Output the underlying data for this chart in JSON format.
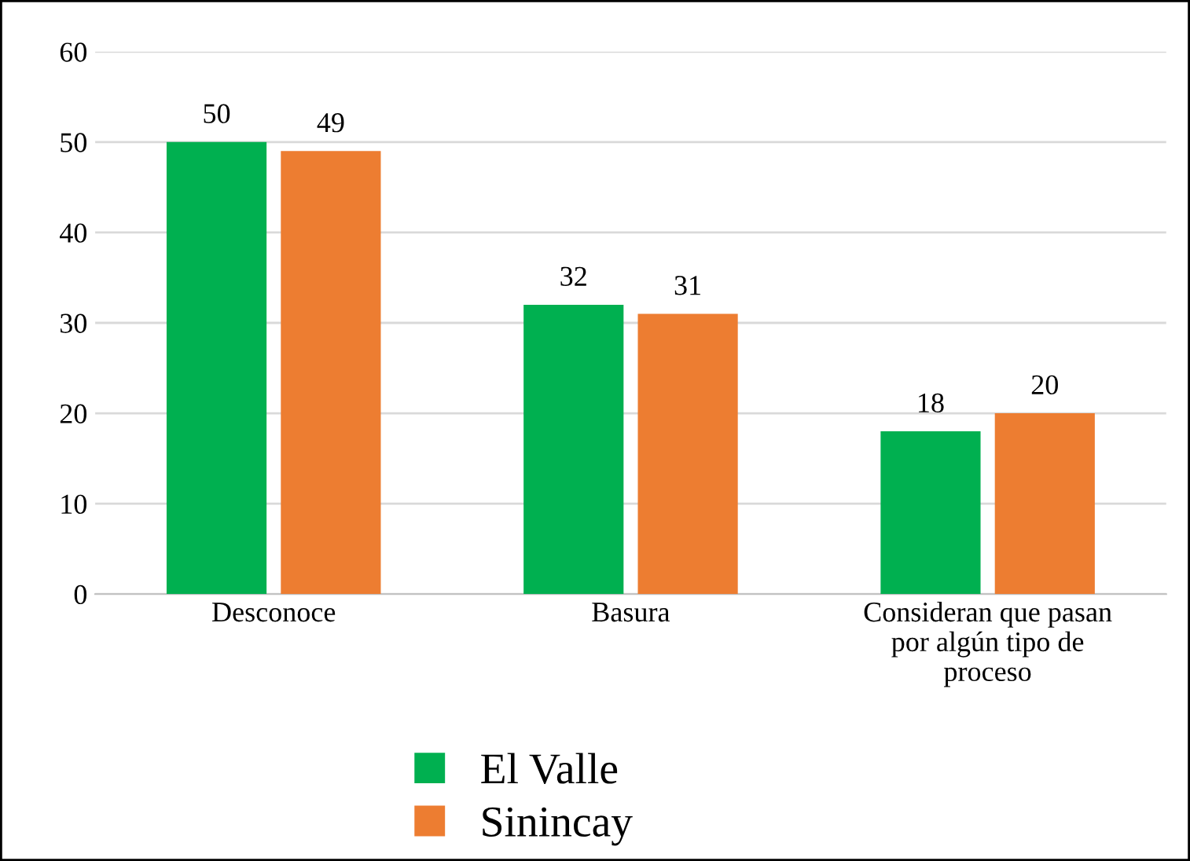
{
  "chart_data": {
    "type": "bar",
    "categories": [
      "Desconoce",
      "Basura",
      "Consideran que pasan\npor algún tipo de\nproceso"
    ],
    "series": [
      {
        "name": "El Valle",
        "color": "#00b050",
        "values": [
          50,
          32,
          18
        ]
      },
      {
        "name": "Sinincay",
        "color": "#ed7d31",
        "values": [
          49,
          31,
          20
        ]
      }
    ],
    "ylim": [
      0,
      60
    ],
    "yticks": [
      0,
      10,
      20,
      30,
      40,
      50,
      60
    ],
    "grid": "y",
    "legend": "bottom",
    "data_labels": true
  }
}
